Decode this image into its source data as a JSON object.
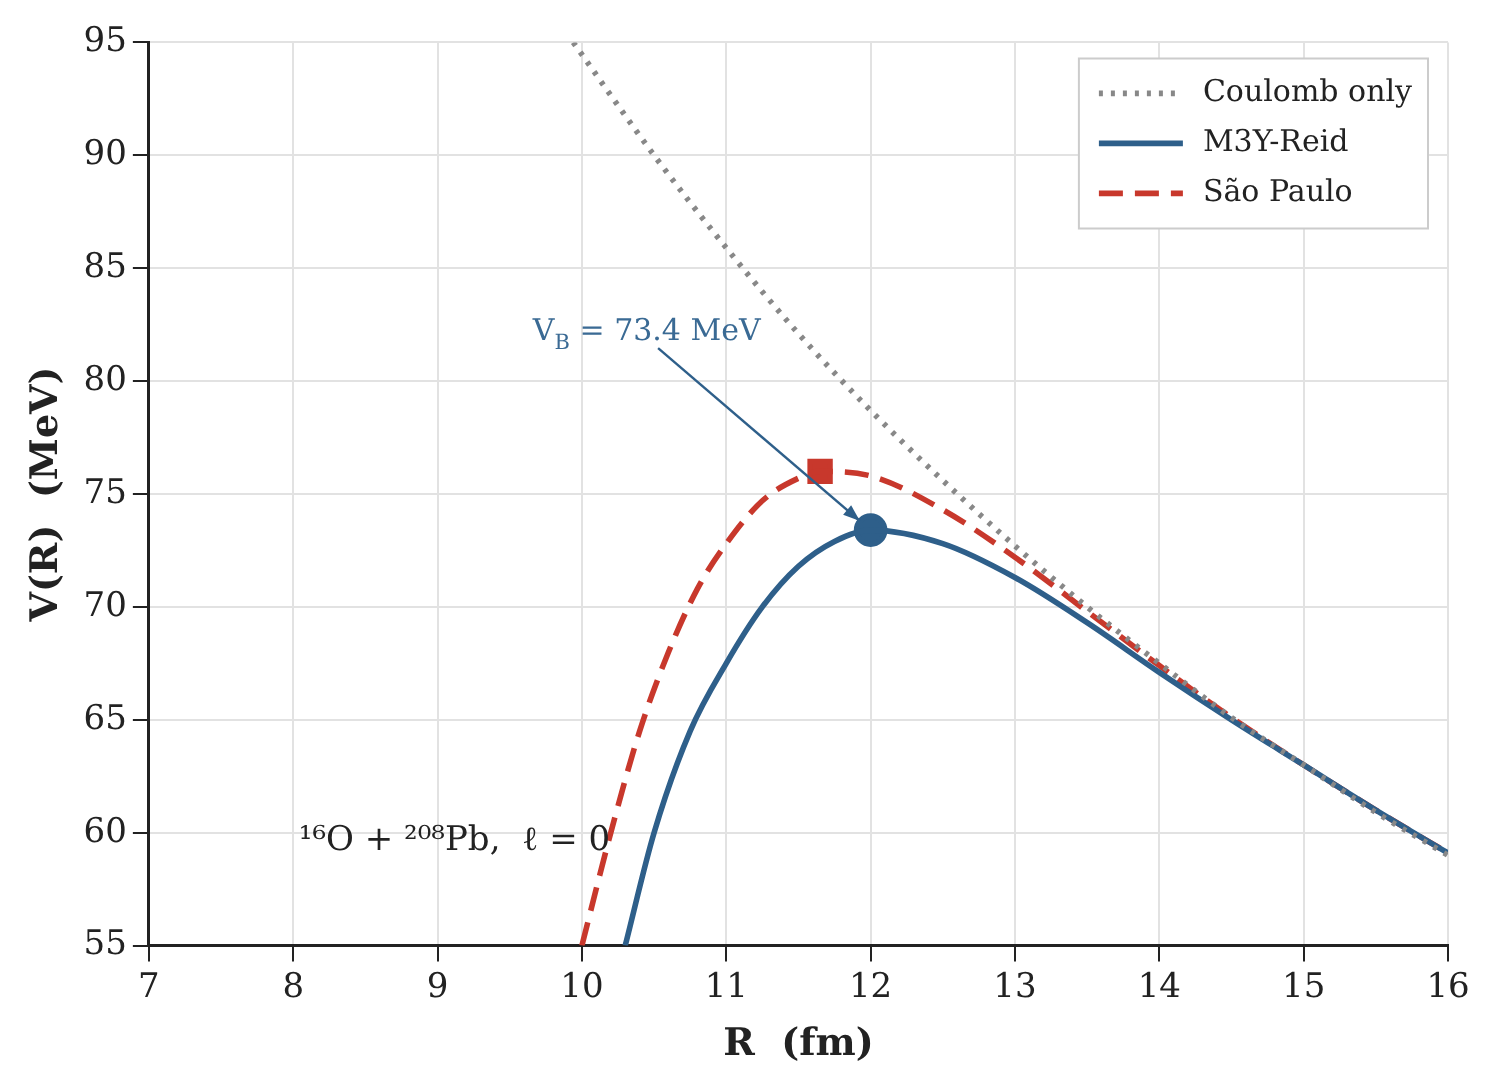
{
  "chart_data": {
    "type": "line",
    "xlabel": "R  (fm)",
    "ylabel": "V(R)  (MeV)",
    "xlim": [
      7,
      16
    ],
    "ylim": [
      55,
      95
    ],
    "xticks": [
      7,
      8,
      9,
      10,
      11,
      12,
      13,
      14,
      15,
      16
    ],
    "yticks": [
      55,
      60,
      65,
      70,
      75,
      80,
      85,
      90,
      95
    ],
    "grid": true,
    "legend": "top right",
    "marker": "none",
    "series": [
      {
        "name": "Coulomb only",
        "color": "#888888",
        "line_style": "dotted",
        "x": [
          9.94,
          10.5,
          11,
          11.5,
          12,
          12.5,
          13,
          13.5,
          14,
          14.5,
          15,
          15.5,
          16
        ],
        "values": [
          95,
          90,
          85.9,
          82.1,
          78.7,
          75.6,
          72.7,
          70,
          67.5,
          65.1,
          63,
          60.9,
          59
        ]
      },
      {
        "name": "M3Y-Reid",
        "color": "#2e5f8a",
        "line_style": "solid",
        "x": [
          10.3,
          10.5,
          10.75,
          11,
          11.25,
          11.5,
          11.75,
          12,
          12.5,
          13,
          13.5,
          14,
          14.5,
          15,
          15.5,
          16
        ],
        "values": [
          55,
          60,
          64.5,
          67.5,
          70,
          71.8,
          72.9,
          73.4,
          72.8,
          71.3,
          69.3,
          67.1,
          65,
          63,
          61,
          59.1
        ]
      },
      {
        "name": "São Paulo",
        "color": "#c8382c",
        "line_style": "dashed",
        "x": [
          10,
          10.2,
          10.4,
          10.6,
          10.8,
          11,
          11.25,
          11.5,
          11.65,
          12,
          12.5,
          13,
          13.5,
          14,
          14.5,
          15,
          15.5,
          16
        ],
        "values": [
          55,
          60,
          64.5,
          68,
          70.8,
          72.8,
          74.7,
          75.7,
          76,
          75.8,
          74.3,
          72.2,
          69.8,
          67.4,
          65.1,
          63,
          61,
          59.1
        ]
      },
      {
        "type": "scatter",
        "color": "#2e5f8a",
        "marker": "circle",
        "x": [
          12
        ],
        "values": [
          73.4
        ]
      },
      {
        "type": "scatter",
        "color": "#c8382c",
        "marker": "square",
        "x": [
          11.65
        ],
        "values": [
          76
        ]
      }
    ],
    "annotations": [
      {
        "text": "V$_{B}$ = 73.4 MeV",
        "x": 12,
        "y": 73.4
      },
      "¹⁶O + ²⁰⁸Pb,  ℓ = 0"
    ]
  }
}
